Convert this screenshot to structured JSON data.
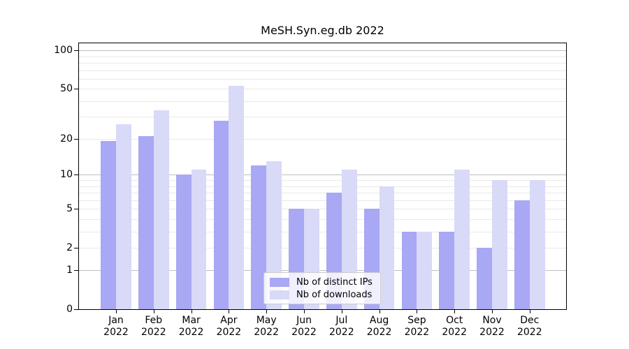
{
  "chart_data": {
    "type": "bar",
    "title": "MeSH.Syn.eg.db 2022",
    "categories": [
      "Jan 2022",
      "Feb 2022",
      "Mar 2022",
      "Apr 2022",
      "May 2022",
      "Jun 2022",
      "Jul 2022",
      "Aug 2022",
      "Sep 2022",
      "Oct 2022",
      "Nov 2022",
      "Dec 2022"
    ],
    "series": [
      {
        "name": "Nb of distinct IPs",
        "color": "#a8a8f4",
        "values": [
          19,
          21,
          10,
          28,
          12,
          5,
          7,
          5,
          3,
          3,
          2,
          6
        ]
      },
      {
        "name": "Nb of downloads",
        "color": "#d9d9f8",
        "values": [
          26,
          34,
          11,
          53,
          13,
          5,
          11,
          8,
          3,
          11,
          9,
          9
        ]
      }
    ],
    "xlabel": "",
    "ylabel": "",
    "yscale": "log1p",
    "ylim": [
      0,
      113
    ],
    "yticks": [
      100,
      50,
      20,
      10,
      5,
      2,
      1,
      0
    ],
    "y_minor_gridlines": [
      3,
      4,
      6,
      7,
      8,
      9,
      30,
      40,
      60,
      70,
      80,
      90
    ],
    "grid": "on",
    "legend_position": "lower center",
    "colors": {
      "grid_decade": "#c0c0c0",
      "grid_minor": "#e9e9e9",
      "axis": "#000000",
      "background": "#ffffff"
    }
  }
}
